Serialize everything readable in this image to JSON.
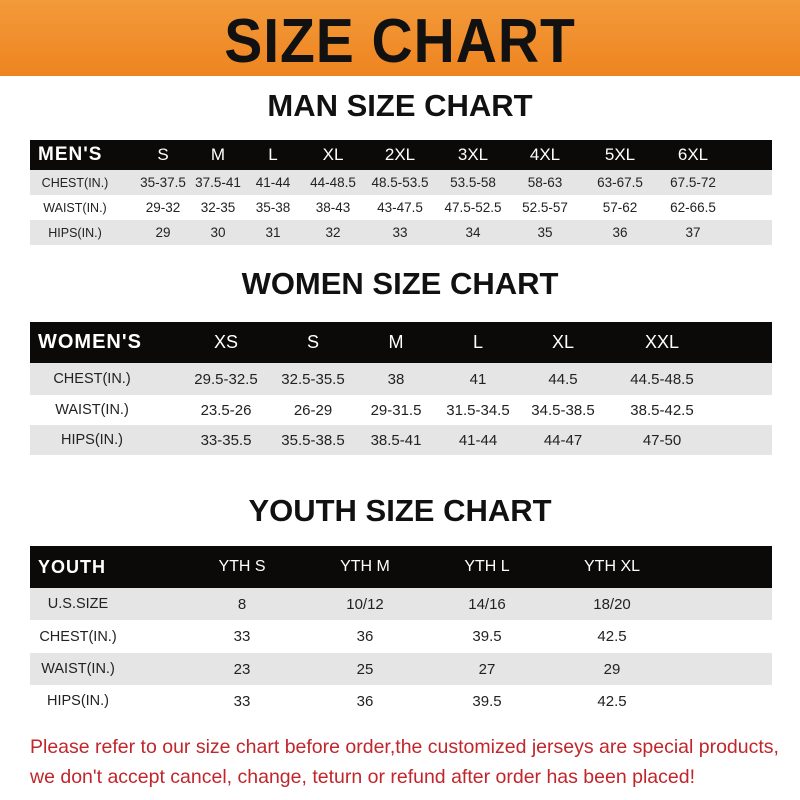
{
  "banner": {
    "title": "SIZE CHART"
  },
  "men": {
    "title": "MAN SIZE CHART",
    "header": [
      "MEN'S",
      "S",
      "M",
      "L",
      "XL",
      "2XL",
      "3XL",
      "4XL",
      "5XL",
      "6XL"
    ],
    "rows": [
      [
        "CHEST(IN.)",
        "35-37.5",
        "37.5-41",
        "41-44",
        "44-48.5",
        "48.5-53.5",
        "53.5-58",
        "58-63",
        "63-67.5",
        "67.5-72"
      ],
      [
        "WAIST(IN.)",
        "29-32",
        "32-35",
        "35-38",
        "38-43",
        "43-47.5",
        "47.5-52.5",
        "52.5-57",
        "57-62",
        "62-66.5"
      ],
      [
        "HIPS(IN.)",
        "29",
        "30",
        "31",
        "32",
        "33",
        "34",
        "35",
        "36",
        "37"
      ]
    ]
  },
  "women": {
    "title": "WOMEN SIZE CHART",
    "header": [
      "WOMEN'S",
      "XS",
      "S",
      "M",
      "L",
      "XL",
      "XXL"
    ],
    "rows": [
      [
        "CHEST(IN.)",
        "29.5-32.5",
        "32.5-35.5",
        "38",
        "41",
        "44.5",
        "44.5-48.5"
      ],
      [
        "WAIST(IN.)",
        "23.5-26",
        "26-29",
        "29-31.5",
        "31.5-34.5",
        "34.5-38.5",
        "38.5-42.5"
      ],
      [
        "HIPS(IN.)",
        "33-35.5",
        "35.5-38.5",
        "38.5-41",
        "41-44",
        "44-47",
        "47-50"
      ]
    ]
  },
  "youth": {
    "title": "YOUTH SIZE CHART",
    "header": [
      "YOUTH",
      "YTH S",
      "YTH M",
      "YTH L",
      "YTH XL"
    ],
    "rows": [
      [
        "U.S.SIZE",
        "8",
        "10/12",
        "14/16",
        "18/20"
      ],
      [
        "CHEST(IN.)",
        "33",
        "36",
        "39.5",
        "42.5"
      ],
      [
        "WAIST(IN.)",
        "23",
        "25",
        "27",
        "29"
      ],
      [
        "HIPS(IN.)",
        "33",
        "36",
        "39.5",
        "42.5"
      ]
    ]
  },
  "note": {
    "line1": "Please refer to our size chart before order,the customized jerseys are special products,",
    "line2": "we don't accept cancel, change, teturn or refund after order has been placed!"
  },
  "colors": {
    "banner": "#ee8420",
    "header_row": "#0c0909",
    "stripe": "#e5e5e5",
    "note": "#c0262b"
  }
}
